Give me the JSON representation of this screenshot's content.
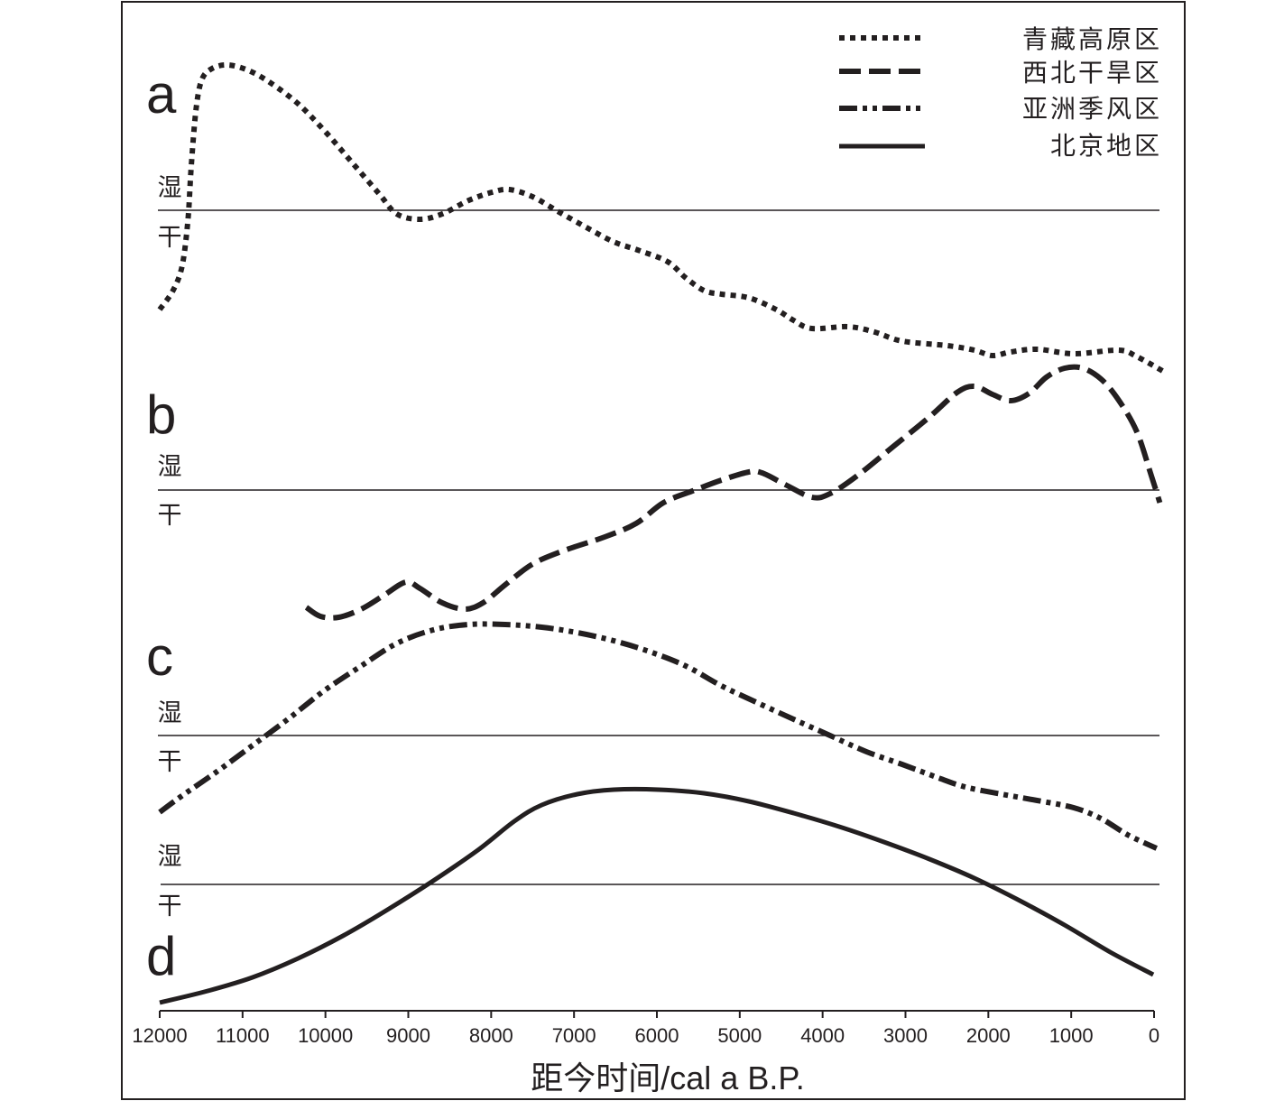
{
  "chart_data": {
    "type": "line",
    "xlabel": "距今时间/cal a B.P.",
    "xlim": [
      12000,
      0
    ],
    "xticks": [
      12000,
      11000,
      10000,
      9000,
      8000,
      7000,
      6000,
      5000,
      4000,
      3000,
      2000,
      1000,
      0
    ],
    "grid": false,
    "legend_position": "top-right",
    "line_color": "#231f20",
    "series": [
      {
        "name": "青藏高原区",
        "panel_label": "a",
        "wet_label": "湿",
        "dry_label": "干",
        "line_style": "dotted",
        "points": [
          [
            12000,
            -1.1
          ],
          [
            11840,
            -0.89
          ],
          [
            11730,
            -0.62
          ],
          [
            11660,
            -0.12
          ],
          [
            11620,
            0.48
          ],
          [
            11560,
            1.13
          ],
          [
            11490,
            1.45
          ],
          [
            11370,
            1.57
          ],
          [
            11180,
            1.61
          ],
          [
            10930,
            1.55
          ],
          [
            10660,
            1.41
          ],
          [
            10330,
            1.18
          ],
          [
            10010,
            0.88
          ],
          [
            9680,
            0.53
          ],
          [
            9350,
            0.18
          ],
          [
            9140,
            -0.04
          ],
          [
            8860,
            -0.1
          ],
          [
            8590,
            -0.04
          ],
          [
            8270,
            0.11
          ],
          [
            7990,
            0.2
          ],
          [
            7780,
            0.23
          ],
          [
            7500,
            0.15
          ],
          [
            7180,
            -0.02
          ],
          [
            6850,
            -0.19
          ],
          [
            6520,
            -0.35
          ],
          [
            6200,
            -0.45
          ],
          [
            5870,
            -0.57
          ],
          [
            5650,
            -0.75
          ],
          [
            5430,
            -0.89
          ],
          [
            5220,
            -0.93
          ],
          [
            4890,
            -0.97
          ],
          [
            4560,
            -1.1
          ],
          [
            4350,
            -1.22
          ],
          [
            4130,
            -1.31
          ],
          [
            3690,
            -1.29
          ],
          [
            3370,
            -1.35
          ],
          [
            3040,
            -1.45
          ],
          [
            2490,
            -1.5
          ],
          [
            2170,
            -1.55
          ],
          [
            1950,
            -1.61
          ],
          [
            1730,
            -1.57
          ],
          [
            1410,
            -1.54
          ],
          [
            970,
            -1.59
          ],
          [
            430,
            -1.55
          ],
          [
            210,
            -1.62
          ],
          [
            -140,
            -1.8
          ]
        ]
      },
      {
        "name": "西北干旱区",
        "panel_label": "b",
        "wet_label": "湿",
        "dry_label": "干",
        "line_style": "dashed",
        "points": [
          [
            10230,
            -1.3
          ],
          [
            10060,
            -1.4
          ],
          [
            9840,
            -1.41
          ],
          [
            9570,
            -1.32
          ],
          [
            9300,
            -1.17
          ],
          [
            9030,
            -1.02
          ],
          [
            8860,
            -1.09
          ],
          [
            8590,
            -1.25
          ],
          [
            8320,
            -1.32
          ],
          [
            8100,
            -1.25
          ],
          [
            7830,
            -1.05
          ],
          [
            7500,
            -0.82
          ],
          [
            7120,
            -0.67
          ],
          [
            6630,
            -0.52
          ],
          [
            6250,
            -0.37
          ],
          [
            5920,
            -0.14
          ],
          [
            5540,
            0.0
          ],
          [
            5220,
            0.11
          ],
          [
            4890,
            0.2
          ],
          [
            4730,
            0.19
          ],
          [
            4450,
            0.06
          ],
          [
            4130,
            -0.08
          ],
          [
            3910,
            -0.04
          ],
          [
            3580,
            0.16
          ],
          [
            3150,
            0.48
          ],
          [
            2710,
            0.81
          ],
          [
            2380,
            1.08
          ],
          [
            2170,
            1.15
          ],
          [
            1950,
            1.06
          ],
          [
            1730,
            0.99
          ],
          [
            1510,
            1.07
          ],
          [
            1300,
            1.25
          ],
          [
            1080,
            1.35
          ],
          [
            860,
            1.35
          ],
          [
            640,
            1.23
          ],
          [
            430,
            1.0
          ],
          [
            210,
            0.65
          ],
          [
            40,
            0.18
          ],
          [
            -70,
            -0.14
          ]
        ]
      },
      {
        "name": "亚洲季风区",
        "panel_label": "c",
        "wet_label": "湿",
        "dry_label": "干",
        "line_style": "dash-dot-dot",
        "points": [
          [
            12000,
            -0.85
          ],
          [
            11750,
            -0.68
          ],
          [
            11310,
            -0.4
          ],
          [
            10880,
            -0.11
          ],
          [
            10440,
            0.19
          ],
          [
            10010,
            0.5
          ],
          [
            9570,
            0.77
          ],
          [
            9140,
            1.02
          ],
          [
            8700,
            1.17
          ],
          [
            8270,
            1.23
          ],
          [
            7830,
            1.23
          ],
          [
            7390,
            1.2
          ],
          [
            6960,
            1.14
          ],
          [
            6520,
            1.05
          ],
          [
            6090,
            0.93
          ],
          [
            5650,
            0.77
          ],
          [
            5220,
            0.55
          ],
          [
            4780,
            0.36
          ],
          [
            4350,
            0.18
          ],
          [
            3910,
            0.0
          ],
          [
            3470,
            -0.18
          ],
          [
            3040,
            -0.32
          ],
          [
            2600,
            -0.47
          ],
          [
            2280,
            -0.57
          ],
          [
            1840,
            -0.65
          ],
          [
            1410,
            -0.72
          ],
          [
            970,
            -0.8
          ],
          [
            640,
            -0.92
          ],
          [
            320,
            -1.1
          ],
          [
            -30,
            -1.25
          ]
        ]
      },
      {
        "name": "北京地区",
        "panel_label": "d",
        "wet_label": "湿",
        "dry_label": "干",
        "line_style": "solid",
        "points": [
          [
            12000,
            -1.31
          ],
          [
            11420,
            -1.18
          ],
          [
            10880,
            -1.03
          ],
          [
            10330,
            -0.82
          ],
          [
            9790,
            -0.57
          ],
          [
            9250,
            -0.28
          ],
          [
            8700,
            0.04
          ],
          [
            8160,
            0.38
          ],
          [
            7720,
            0.7
          ],
          [
            7390,
            0.88
          ],
          [
            6960,
            1.0
          ],
          [
            6520,
            1.05
          ],
          [
            5980,
            1.05
          ],
          [
            5430,
            1.01
          ],
          [
            4890,
            0.92
          ],
          [
            4350,
            0.79
          ],
          [
            3800,
            0.64
          ],
          [
            3260,
            0.47
          ],
          [
            2710,
            0.28
          ],
          [
            2170,
            0.07
          ],
          [
            1620,
            -0.18
          ],
          [
            1080,
            -0.45
          ],
          [
            530,
            -0.75
          ],
          [
            10,
            -1.0
          ]
        ]
      }
    ]
  }
}
